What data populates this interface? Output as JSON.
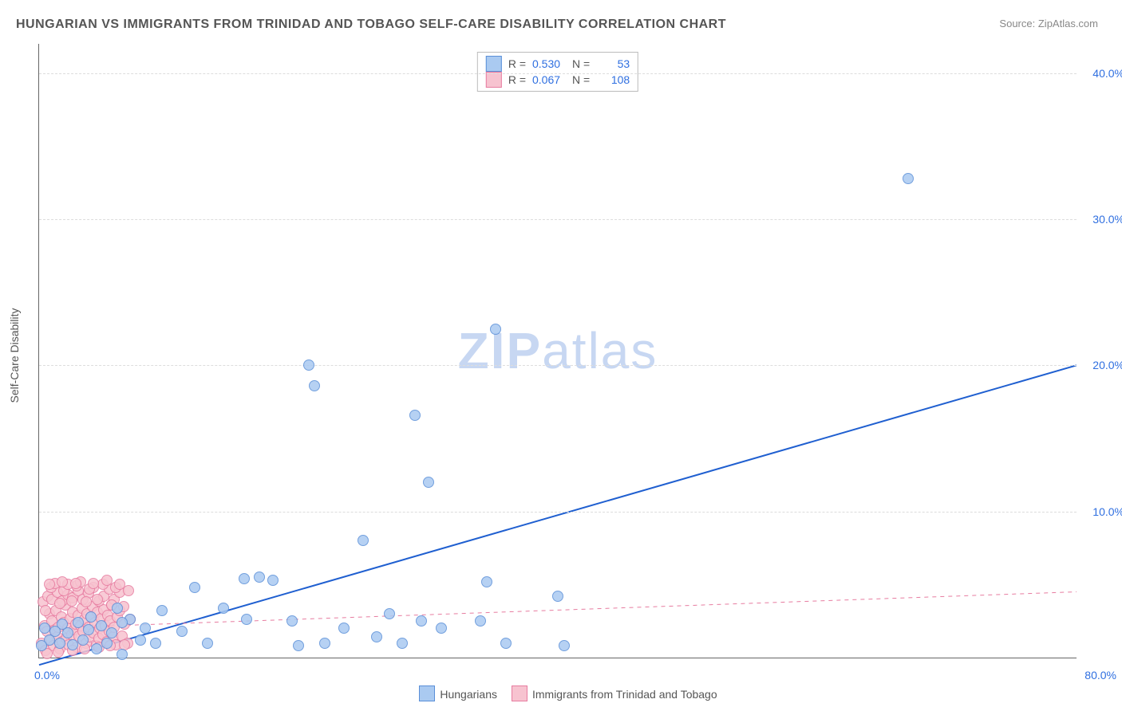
{
  "title": "HUNGARIAN VS IMMIGRANTS FROM TRINIDAD AND TOBAGO SELF-CARE DISABILITY CORRELATION CHART",
  "source_label": "Source:",
  "source_value": "ZipAtlas.com",
  "ylabel": "Self-Care Disability",
  "watermark": {
    "bold": "ZIP",
    "light": "atlas",
    "color": "#c7d7f2"
  },
  "chart": {
    "type": "scatter",
    "background_color": "#ffffff",
    "grid_color": "#dddddd",
    "axis_color": "#666666",
    "text_color": "#555555",
    "tick_color": "#2f6fe0",
    "xlim": [
      0,
      80
    ],
    "ylim": [
      0,
      42
    ],
    "xtick_labels": [
      {
        "value": 0,
        "label": "0.0%"
      },
      {
        "value": 80,
        "label": "80.0%"
      }
    ],
    "ytick_labels": [
      {
        "value": 10,
        "label": "10.0%"
      },
      {
        "value": 20,
        "label": "20.0%"
      },
      {
        "value": 30,
        "label": "30.0%"
      },
      {
        "value": 40,
        "label": "40.0%"
      }
    ],
    "grid_y": [
      10,
      20,
      30,
      40
    ],
    "marker_radius": 7,
    "marker_border_width": 1,
    "series": [
      {
        "key": "hungarians",
        "label": "Hungarians",
        "fill": "#aacaf1",
        "stroke": "#5a8fd8",
        "line_color": "#1f5fd0",
        "line_width": 2,
        "line_dash": "none",
        "trend": {
          "x0": 0,
          "y0": -0.5,
          "x1": 80,
          "y1": 20.0
        },
        "R": "0.530",
        "N": "53",
        "points": [
          [
            67.0,
            32.8
          ],
          [
            35.2,
            22.5
          ],
          [
            20.8,
            20.0
          ],
          [
            21.2,
            18.6
          ],
          [
            29.0,
            16.6
          ],
          [
            30.0,
            12.0
          ],
          [
            34.5,
            5.2
          ],
          [
            40.0,
            4.2
          ],
          [
            40.5,
            0.8
          ],
          [
            25.0,
            8.0
          ],
          [
            27.0,
            3.0
          ],
          [
            23.5,
            2.0
          ],
          [
            22.0,
            1.0
          ],
          [
            18.0,
            5.3
          ],
          [
            17.0,
            5.5
          ],
          [
            15.8,
            5.4
          ],
          [
            14.2,
            3.4
          ],
          [
            12.0,
            4.8
          ],
          [
            11.0,
            1.8
          ],
          [
            13.0,
            1.0
          ],
          [
            9.5,
            3.2
          ],
          [
            9.0,
            1.0
          ],
          [
            8.2,
            2.0
          ],
          [
            7.8,
            1.2
          ],
          [
            7.0,
            2.6
          ],
          [
            6.4,
            2.4
          ],
          [
            6.4,
            0.2
          ],
          [
            5.6,
            1.7
          ],
          [
            5.2,
            1.0
          ],
          [
            4.8,
            2.2
          ],
          [
            4.4,
            0.6
          ],
          [
            3.8,
            1.9
          ],
          [
            3.4,
            1.2
          ],
          [
            3.0,
            2.4
          ],
          [
            2.6,
            0.9
          ],
          [
            2.2,
            1.7
          ],
          [
            1.8,
            2.3
          ],
          [
            1.6,
            1.0
          ],
          [
            1.2,
            1.8
          ],
          [
            0.8,
            1.2
          ],
          [
            0.4,
            2.0
          ],
          [
            0.2,
            0.8
          ],
          [
            4.0,
            2.8
          ],
          [
            6.0,
            3.4
          ],
          [
            16.0,
            2.6
          ],
          [
            19.5,
            2.5
          ],
          [
            20.0,
            0.8
          ],
          [
            26.0,
            1.4
          ],
          [
            29.5,
            2.5
          ],
          [
            31.0,
            2.0
          ],
          [
            34.0,
            2.5
          ],
          [
            36.0,
            1.0
          ],
          [
            28.0,
            1.0
          ]
        ]
      },
      {
        "key": "trinidad",
        "label": "Immigrants from Trinidad and Tobago",
        "fill": "#f7c3d0",
        "stroke": "#e77ca0",
        "line_color": "#e77ca0",
        "line_width": 1,
        "line_dash": "5,5",
        "trend": {
          "x0": 0,
          "y0": 2.0,
          "x1": 80,
          "y1": 4.5
        },
        "R": "0.067",
        "N": "108",
        "points": [
          [
            0.2,
            1.0
          ],
          [
            0.4,
            2.2
          ],
          [
            0.5,
            0.5
          ],
          [
            0.6,
            1.8
          ],
          [
            0.8,
            3.0
          ],
          [
            0.9,
            1.2
          ],
          [
            1.0,
            2.5
          ],
          [
            1.1,
            0.8
          ],
          [
            1.2,
            1.9
          ],
          [
            1.3,
            3.2
          ],
          [
            1.4,
            1.4
          ],
          [
            1.5,
            2.1
          ],
          [
            1.6,
            0.6
          ],
          [
            1.7,
            2.8
          ],
          [
            1.8,
            1.1
          ],
          [
            1.9,
            2.4
          ],
          [
            2.0,
            3.6
          ],
          [
            2.1,
            1.3
          ],
          [
            2.2,
            2.0
          ],
          [
            2.3,
            0.9
          ],
          [
            2.4,
            2.7
          ],
          [
            2.5,
            1.6
          ],
          [
            2.6,
            3.1
          ],
          [
            2.7,
            1.9
          ],
          [
            2.8,
            2.3
          ],
          [
            2.9,
            0.7
          ],
          [
            3.0,
            2.9
          ],
          [
            3.1,
            1.5
          ],
          [
            3.2,
            2.2
          ],
          [
            3.3,
            3.4
          ],
          [
            3.4,
            1.8
          ],
          [
            3.5,
            2.6
          ],
          [
            3.6,
            1.0
          ],
          [
            3.7,
            3.0
          ],
          [
            3.8,
            2.1
          ],
          [
            3.9,
            1.4
          ],
          [
            4.0,
            2.8
          ],
          [
            4.1,
            3.5
          ],
          [
            4.2,
            1.7
          ],
          [
            4.3,
            2.4
          ],
          [
            4.4,
            0.8
          ],
          [
            4.5,
            3.1
          ],
          [
            4.6,
            1.3
          ],
          [
            4.7,
            2.0
          ],
          [
            4.8,
            2.7
          ],
          [
            4.9,
            1.6
          ],
          [
            5.0,
            3.3
          ],
          [
            5.1,
            2.2
          ],
          [
            5.2,
            1.1
          ],
          [
            5.3,
            2.9
          ],
          [
            5.4,
            1.8
          ],
          [
            5.5,
            2.5
          ],
          [
            5.6,
            3.6
          ],
          [
            5.7,
            1.4
          ],
          [
            5.8,
            2.1
          ],
          [
            5.9,
            0.9
          ],
          [
            6.0,
            2.8
          ],
          [
            6.2,
            3.2
          ],
          [
            6.4,
            1.5
          ],
          [
            6.6,
            2.3
          ],
          [
            6.8,
            1.0
          ],
          [
            7.0,
            2.6
          ],
          [
            0.3,
            3.8
          ],
          [
            0.7,
            4.2
          ],
          [
            1.0,
            4.0
          ],
          [
            1.4,
            4.5
          ],
          [
            1.8,
            3.9
          ],
          [
            2.2,
            4.3
          ],
          [
            2.6,
            4.1
          ],
          [
            3.0,
            4.6
          ],
          [
            3.4,
            4.0
          ],
          [
            3.8,
            4.4
          ],
          [
            4.2,
            4.8
          ],
          [
            4.6,
            3.9
          ],
          [
            5.0,
            4.2
          ],
          [
            5.4,
            4.7
          ],
          [
            5.8,
            4.0
          ],
          [
            6.2,
            4.5
          ],
          [
            0.5,
            3.2
          ],
          [
            1.5,
            0.4
          ],
          [
            2.5,
            3.9
          ],
          [
            3.5,
            0.6
          ],
          [
            4.5,
            4.0
          ],
          [
            5.5,
            0.8
          ],
          [
            6.5,
            3.5
          ],
          [
            0.9,
            4.8
          ],
          [
            1.9,
            4.6
          ],
          [
            2.9,
            4.9
          ],
          [
            3.9,
            4.7
          ],
          [
            4.9,
            5.0
          ],
          [
            5.9,
            4.8
          ],
          [
            6.9,
            4.6
          ],
          [
            0.6,
            0.3
          ],
          [
            1.6,
            3.7
          ],
          [
            2.6,
            0.5
          ],
          [
            3.6,
            3.8
          ],
          [
            4.6,
            0.7
          ],
          [
            5.6,
            3.6
          ],
          [
            6.6,
            0.9
          ],
          [
            1.2,
            5.1
          ],
          [
            2.2,
            5.0
          ],
          [
            3.2,
            5.2
          ],
          [
            4.2,
            5.1
          ],
          [
            5.2,
            5.3
          ],
          [
            6.2,
            5.0
          ],
          [
            0.8,
            5.0
          ],
          [
            1.8,
            5.2
          ],
          [
            2.8,
            5.1
          ]
        ]
      }
    ]
  },
  "legend_top": {
    "R_prefix": "R =",
    "N_prefix": "N ="
  },
  "legend_bottom": {
    "items": [
      "hungarians",
      "trinidad"
    ]
  }
}
